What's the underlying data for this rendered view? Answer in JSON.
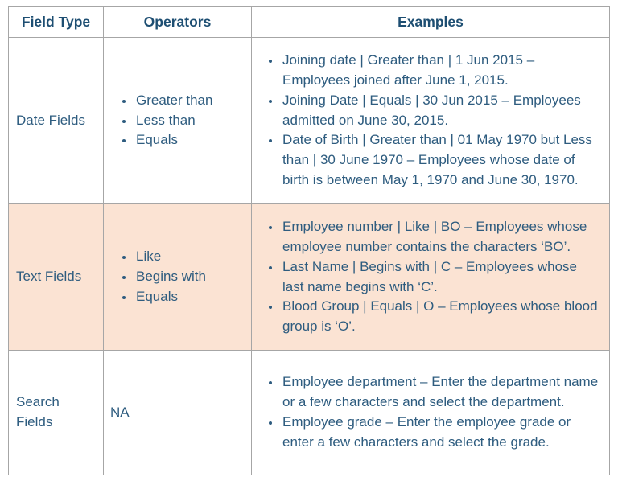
{
  "colors": {
    "header_text": "#1d4e72",
    "body_text": "#2e5c7f",
    "border": "#a6a6a6",
    "highlight_row_bg": "#fbe3d3",
    "page_bg": "#ffffff"
  },
  "table": {
    "headers": [
      "Field Type",
      "Operators",
      "Examples"
    ],
    "rows": [
      {
        "field_type": "Date Fields",
        "highlighted": false,
        "operators": [
          "Greater than",
          "Less than",
          "Equals"
        ],
        "examples": [
          "Joining date | Greater than | 1 Jun 2015 – Employees joined after June 1, 2015.",
          "Joining Date | Equals | 30 Jun 2015 – Employees admitted on June 30, 2015.",
          "Date of Birth | Greater than | 01 May 1970 but Less than | 30 June 1970 – Employees whose date of birth is between May 1, 1970 and June 30, 1970."
        ]
      },
      {
        "field_type": "Text Fields",
        "highlighted": true,
        "operators": [
          "Like",
          "Begins with",
          "Equals"
        ],
        "examples": [
          "Employee number | Like | BO – Employees whose employee number contains the characters ‘BO’.",
          "Last Name | Begins with | C – Employees whose last name begins with ‘C’.",
          "Blood Group | Equals | O – Employees whose blood group is ‘O’."
        ]
      },
      {
        "field_type": "Search Fields",
        "highlighted": false,
        "operators_text": "NA",
        "examples": [
          "Employee department – Enter the department name or a few characters and select the department.",
          "Employee grade – Enter the employee grade or enter a few characters and select the grade."
        ]
      }
    ]
  }
}
